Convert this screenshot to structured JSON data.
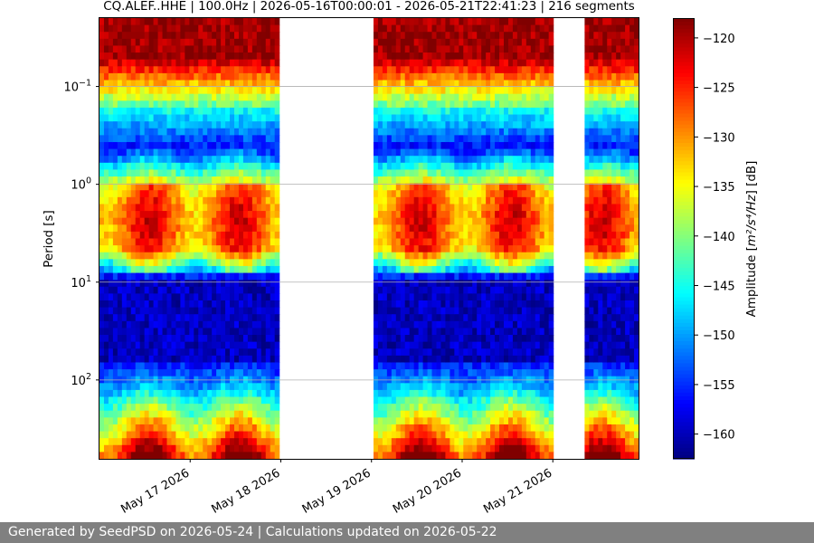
{
  "chart_data": {
    "type": "heatmap",
    "title": "CQ.ALEF..HHE | 100.0Hz | 2026-05-16T00:00:01 - 2026-05-21T22:41:23 | 216 segments",
    "xlabel": "",
    "ylabel": "Period [s]",
    "x_ticks": [
      "May 17 2026",
      "May 18 2026",
      "May 19 2026",
      "May 20 2026",
      "May 21 2026"
    ],
    "x_range": [
      "2026-05-16T00:00:01",
      "2026-05-21T22:41:23"
    ],
    "y_scale": "log",
    "y_range": [
      0.02,
      640
    ],
    "y_ticks": [
      {
        "exp": "-1",
        "value": 0.1
      },
      {
        "exp": "0",
        "value": 1
      },
      {
        "exp": "1",
        "value": 10
      },
      {
        "exp": "2",
        "value": 100
      }
    ],
    "y_tick_base": "10",
    "grid": "horizontal",
    "colorbar": {
      "label_prefix": "Amplitude [",
      "label_unit": "m²/s⁴/Hz",
      "label_suffix": "] [dB]",
      "colormap": "jet",
      "range": [
        -162.5,
        -118
      ],
      "ticks": [
        "−120",
        "−125",
        "−130",
        "−135",
        "−140",
        "−145",
        "−150",
        "−155",
        "−160"
      ],
      "tick_values": [
        -120,
        -125,
        -130,
        -135,
        -140,
        -145,
        -150,
        -155,
        -160
      ]
    },
    "data_gaps": [
      {
        "start": "2026-05-16T23:50",
        "end": "2026-05-17T00:10"
      },
      {
        "start": "2026-05-18T00:00",
        "end": "2026-05-19T00:00"
      },
      {
        "start": "2026-05-19T23:50",
        "end": "2026-05-20T00:05"
      },
      {
        "start": "2026-05-21T00:00",
        "end": "2026-05-21T07:50"
      }
    ],
    "segments": 216
  },
  "footer": {
    "text": "Generated by SeedPSD on 2026-05-24 | Calculations updated on 2026-05-22"
  }
}
